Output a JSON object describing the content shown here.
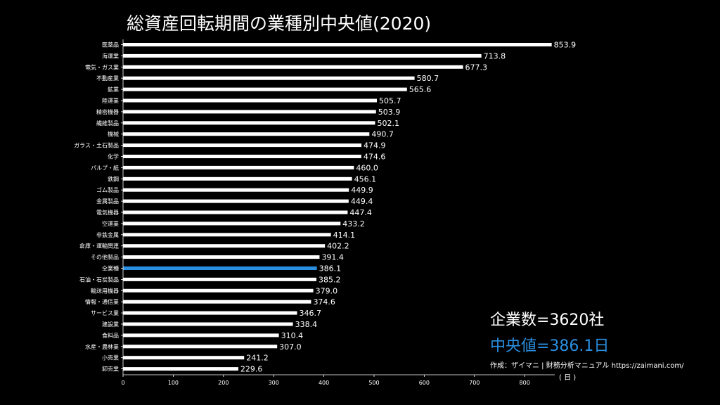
{
  "chart_data": {
    "type": "bar",
    "orientation": "horizontal",
    "title": "総資産回転期間の業種別中央値(2020)",
    "categories": [
      "医薬品",
      "海運業",
      "電気・ガス業",
      "不動産業",
      "鉱業",
      "陸運業",
      "精密機器",
      "繊維製品",
      "機械",
      "ガラス・土石製品",
      "化学",
      "パルプ・紙",
      "鉄鋼",
      "ゴム製品",
      "金属製品",
      "電気機器",
      "空運業",
      "非鉄金属",
      "倉庫・運輸関連",
      "その他製品",
      "全業種",
      "石油・石炭製品",
      "輸送用機器",
      "情報・通信業",
      "サービス業",
      "建設業",
      "食料品",
      "水産・農林業",
      "小売業",
      "卸売業"
    ],
    "values": [
      853.9,
      713.8,
      677.3,
      580.7,
      565.6,
      505.7,
      503.9,
      502.1,
      490.7,
      474.9,
      474.6,
      460.0,
      456.1,
      449.9,
      449.4,
      447.4,
      433.2,
      414.1,
      402.2,
      391.4,
      386.1,
      385.2,
      379.0,
      374.6,
      346.7,
      338.4,
      310.4,
      307.0,
      241.2,
      229.6
    ],
    "value_labels": [
      "853.9",
      "713.8",
      "677.3",
      "580.7",
      "565.6",
      "505.7",
      "503.9",
      "502.1",
      "490.7",
      "474.9",
      "474.6",
      "460.0",
      "456.1",
      "449.9",
      "449.4",
      "447.4",
      "433.2",
      "414.1",
      "402.2",
      "391.4",
      "386.1",
      "385.2",
      "379.0",
      "374.6",
      "346.7",
      "338.4",
      "310.4",
      "307.0",
      "241.2",
      "229.6"
    ],
    "highlight_category": "全業種",
    "xlim": [
      0,
      860
    ],
    "x_ticks": [
      0,
      100,
      200,
      300,
      400,
      500,
      600,
      700,
      800
    ],
    "xlabel": "",
    "ylabel": "",
    "grid": false
  },
  "annotations": {
    "company_count": "企業数=3620社",
    "median": "中央値=386.1日",
    "credit": "作成：ザイマニ | 財務分析マニュアル  https://zaimani.com/",
    "unit": "( 日 )"
  },
  "colors": {
    "background": "#000000",
    "bar": "#ffffff",
    "highlight": "#2a8fe0",
    "text": "#ffffff"
  }
}
